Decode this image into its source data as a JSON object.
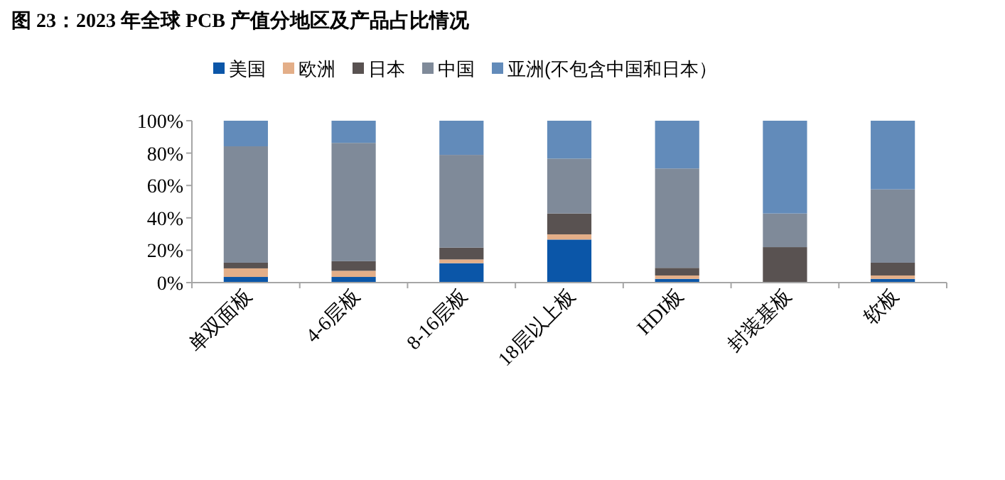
{
  "chart_data": {
    "type": "bar",
    "stacked": true,
    "title": "图 23：2023 年全球 PCB 产值分地区及产品占比情况",
    "categories": [
      "单双面板",
      "4-6层板",
      "8-16层板",
      "18层以上板",
      "HDI板",
      "封装基板",
      "软板"
    ],
    "series": [
      {
        "name": "美国",
        "color": "#0b56a8",
        "values": [
          3.5,
          3.5,
          12,
          26.6,
          2.3,
          0,
          2.3
        ]
      },
      {
        "name": "欧洲",
        "color": "#e3ae88",
        "values": [
          5.3,
          3.8,
          2.3,
          3.2,
          2.1,
          0,
          2.1
        ]
      },
      {
        "name": "日本",
        "color": "#595251",
        "values": [
          3.5,
          5.9,
          7.3,
          12.9,
          4.7,
          21.9,
          7.9
        ]
      },
      {
        "name": "中国",
        "color": "#7f8a99",
        "values": [
          71.9,
          73.1,
          57.3,
          33.9,
          61.4,
          20.8,
          45.3
        ]
      },
      {
        "name": "亚洲(不包含中国和日本）",
        "color": "#628bba",
        "values": [
          15.8,
          13.7,
          21.1,
          23.4,
          29.5,
          57.3,
          42.4
        ]
      }
    ],
    "ylim": [
      0,
      100
    ],
    "yticks": [
      {
        "value": 0,
        "label": "0%"
      },
      {
        "value": 20,
        "label": "20%"
      },
      {
        "value": 40,
        "label": "40%"
      },
      {
        "value": 60,
        "label": "60%"
      },
      {
        "value": 80,
        "label": "80%"
      },
      {
        "value": 100,
        "label": "100%"
      }
    ],
    "legend": "top",
    "grid": false
  }
}
